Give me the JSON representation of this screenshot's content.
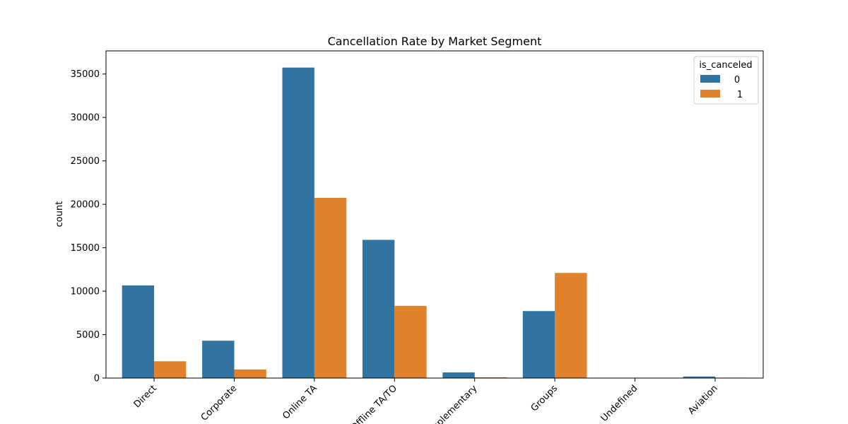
{
  "chart_data": {
    "type": "bar",
    "title": "Cancellation Rate by Market Segment",
    "xlabel": "",
    "ylabel": "count",
    "categories": [
      "Direct",
      "Corporate",
      "Online TA",
      "Offline TA/TO",
      "Complementary",
      "Groups",
      "Undefined",
      "Aviation"
    ],
    "series": [
      {
        "name": "0",
        "color": "#3274a1",
        "values": [
          10670,
          4300,
          35740,
          15910,
          650,
          7710,
          0,
          180
        ]
      },
      {
        "name": "1",
        "color": "#e1812c",
        "values": [
          1930,
          990,
          20740,
          8310,
          90,
          12100,
          2,
          50
        ]
      }
    ],
    "ylim": [
      0,
      37660
    ],
    "yticks": [
      0,
      5000,
      10000,
      15000,
      20000,
      25000,
      30000,
      35000
    ],
    "ytick_labels": [
      "0",
      "5000",
      "10000",
      "15000",
      "20000",
      "25000",
      "30000",
      "35000"
    ],
    "legend": {
      "title": "is_canceled",
      "placement": "top-right"
    },
    "grid": false
  }
}
